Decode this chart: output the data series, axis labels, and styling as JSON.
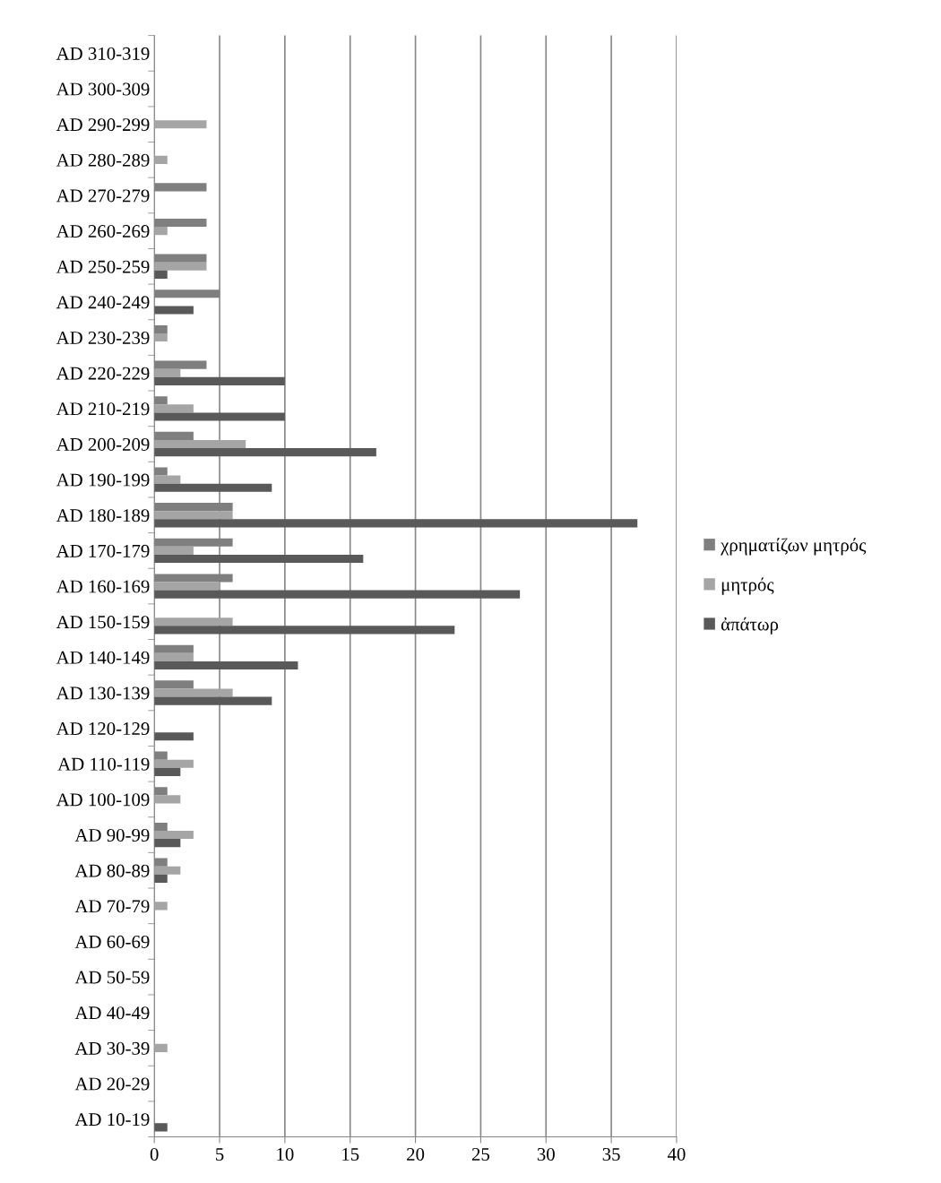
{
  "chart_data": {
    "type": "bar",
    "orientation": "horizontal",
    "categories": [
      "AD 310-319",
      "AD 300-309",
      "AD 290-299",
      "AD 280-289",
      "AD 270-279",
      "AD 260-269",
      "AD 250-259",
      "AD 240-249",
      "AD 230-239",
      "AD 220-229",
      "AD 210-219",
      "AD 200-209",
      "AD 190-199",
      "AD 180-189",
      "AD 170-179",
      "AD 160-169",
      "AD 150-159",
      "AD 140-149",
      "AD 130-139",
      "AD 120-129",
      "AD 110-119",
      "AD 100-109",
      "AD 90-99",
      "AD 80-89",
      "AD 70-79",
      "AD 60-69",
      "AD 50-59",
      "AD 40-49",
      "AD 30-39",
      "AD 20-29",
      "AD 10-19"
    ],
    "series": [
      {
        "name": "χρηματίζων μητρός",
        "color": "#7f7f7f",
        "values": [
          0,
          0,
          0,
          0,
          4,
          4,
          4,
          5,
          1,
          4,
          1,
          3,
          1,
          6,
          6,
          6,
          0,
          3,
          3,
          0,
          1,
          1,
          1,
          1,
          0,
          0,
          0,
          0,
          0,
          0,
          0
        ]
      },
      {
        "name": "μητρός",
        "color": "#a5a5a5",
        "values": [
          0,
          0,
          4,
          1,
          0,
          1,
          4,
          0,
          1,
          2,
          3,
          7,
          2,
          6,
          3,
          5,
          6,
          3,
          6,
          0,
          3,
          2,
          3,
          2,
          1,
          0,
          0,
          0,
          1,
          0,
          0
        ]
      },
      {
        "name": "ἀπάτωρ",
        "color": "#595959",
        "values": [
          0,
          0,
          0,
          0,
          0,
          0,
          1,
          3,
          0,
          10,
          10,
          17,
          9,
          37,
          16,
          28,
          23,
          11,
          9,
          3,
          2,
          0,
          2,
          1,
          0,
          0,
          0,
          0,
          0,
          0,
          1
        ]
      }
    ],
    "xlim": [
      0,
      40
    ],
    "xticks": [
      0,
      5,
      10,
      15,
      20,
      25,
      30,
      35,
      40
    ],
    "grid": "x",
    "legend": "right"
  }
}
